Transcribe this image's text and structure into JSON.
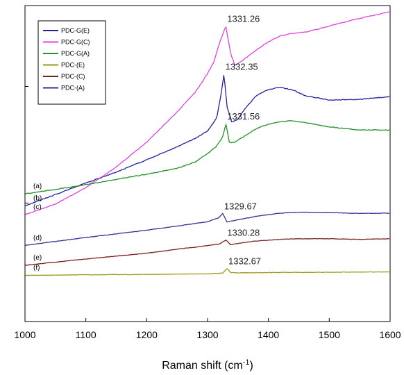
{
  "chart_data": {
    "type": "line",
    "title": "",
    "xlabel": "Raman shift (cm",
    "xlabel_sup": "-1",
    "xlabel_close": ")",
    "ylabel": "",
    "xlim": [
      1000,
      1600
    ],
    "ylim": [
      0,
      100
    ],
    "x_ticks": [
      1000,
      1100,
      1200,
      1300,
      1400,
      1500,
      1600
    ],
    "x_tick_labels": [
      "1000",
      "1100",
      "1200",
      "1300",
      "1400",
      "1500",
      "1600"
    ],
    "y_tick_values": [
      37.5,
      74.4
    ],
    "grid": false,
    "legend": {
      "placement": "top-left",
      "entries": [
        {
          "name": "PDC-G(E)",
          "color": "#2020a0"
        },
        {
          "name": "PDC-G(C)",
          "color": "#e040e0"
        },
        {
          "name": "PDC-G(A)",
          "color": "#20902a"
        },
        {
          "name": "PDC-(E)",
          "color": "#9a9a18"
        },
        {
          "name": "PDC-(C)",
          "color": "#7a1f1f"
        },
        {
          "name": "PDC-(A)",
          "color": "#30309a"
        }
      ]
    },
    "series": [
      {
        "name": "PDC-G(E)",
        "color": "#2020a0",
        "label": "(b)",
        "peak_label": "1332.35",
        "peak": {
          "x": 1327,
          "y": 78.3
        },
        "x": [
          1000,
          1050,
          1100,
          1150,
          1200,
          1250,
          1280,
          1300,
          1315,
          1322,
          1327,
          1332,
          1340,
          1350,
          1360,
          1380,
          1400,
          1420,
          1440,
          1460,
          1500,
          1550,
          1600
        ],
        "y": [
          36.6,
          40.2,
          43.8,
          47.3,
          51.2,
          55.3,
          58.0,
          60.3,
          64.4,
          71.7,
          78.3,
          68.0,
          63.0,
          64.1,
          67.0,
          71.5,
          73.4,
          74.1,
          73.3,
          71.5,
          70.1,
          70.3,
          71.2
        ]
      },
      {
        "name": "PDC-G(C)",
        "color": "#e040e0",
        "label": "(c)",
        "peak_label": "1331.26",
        "peak": {
          "x": 1330,
          "y": 93.5
        },
        "x": [
          1000,
          1050,
          1100,
          1150,
          1200,
          1250,
          1280,
          1300,
          1310,
          1320,
          1330,
          1338,
          1345,
          1360,
          1380,
          1400,
          1420,
          1440,
          1460,
          1480,
          1500,
          1530,
          1560,
          1600
        ],
        "y": [
          33.8,
          37.2,
          42.4,
          48.9,
          56.8,
          66.3,
          72.6,
          78.5,
          82.0,
          88.3,
          93.5,
          84.8,
          81.0,
          83.0,
          86.0,
          88.5,
          90.5,
          91.2,
          91.6,
          92.5,
          93.5,
          95.0,
          96.4,
          98.0
        ]
      },
      {
        "name": "PDC-G(A)",
        "color": "#20902a",
        "label": "(a)",
        "peak_label": "1331.56",
        "peak": {
          "x": 1330,
          "y": 62.6
        },
        "x": [
          1000,
          1050,
          1100,
          1150,
          1200,
          1250,
          1280,
          1300,
          1315,
          1325,
          1330,
          1336,
          1345,
          1360,
          1380,
          1400,
          1420,
          1440,
          1460,
          1500,
          1550,
          1600
        ],
        "y": [
          40.4,
          41.8,
          43.3,
          45.0,
          46.6,
          48.5,
          50.5,
          53.2,
          55.5,
          58.5,
          62.6,
          56.6,
          56.8,
          58.6,
          61.0,
          62.5,
          63.3,
          63.5,
          63.0,
          61.6,
          60.6,
          60.6
        ]
      },
      {
        "name": "PDC-(A)",
        "color": "#30309a",
        "label": "(d)",
        "peak_label": "1329.67",
        "peak": {
          "x": 1325,
          "y": 34.2
        },
        "x": [
          1000,
          1100,
          1200,
          1250,
          1300,
          1318,
          1325,
          1332,
          1345,
          1380,
          1420,
          1450,
          1500,
          1550,
          1600
        ],
        "y": [
          24.1,
          26.6,
          28.9,
          30.2,
          31.6,
          32.8,
          34.2,
          31.5,
          32.0,
          33.3,
          34.3,
          34.6,
          34.5,
          34.2,
          34.3
        ]
      },
      {
        "name": "PDC-(C)",
        "color": "#7a1f1f",
        "label": "(e)",
        "peak_label": "1330.28",
        "peak": {
          "x": 1330,
          "y": 25.8
        },
        "x": [
          1000,
          1100,
          1200,
          1250,
          1300,
          1320,
          1330,
          1338,
          1350,
          1380,
          1420,
          1450,
          1500,
          1550,
          1600
        ],
        "y": [
          17.8,
          19.8,
          21.6,
          22.9,
          24.0,
          24.6,
          25.8,
          24.3,
          24.7,
          25.5,
          26.0,
          26.2,
          26.2,
          26.0,
          26.2
        ]
      },
      {
        "name": "PDC-(E)",
        "color": "#9a9a18",
        "label": "(f)",
        "peak_label": "1332.67",
        "peak": {
          "x": 1332,
          "y": 16.8
        },
        "x": [
          1000,
          1100,
          1200,
          1300,
          1325,
          1332,
          1338,
          1350,
          1400,
          1500,
          1600
        ],
        "y": [
          14.6,
          14.8,
          14.9,
          15.1,
          15.3,
          16.8,
          15.5,
          15.4,
          15.5,
          15.6,
          15.7
        ]
      }
    ]
  }
}
